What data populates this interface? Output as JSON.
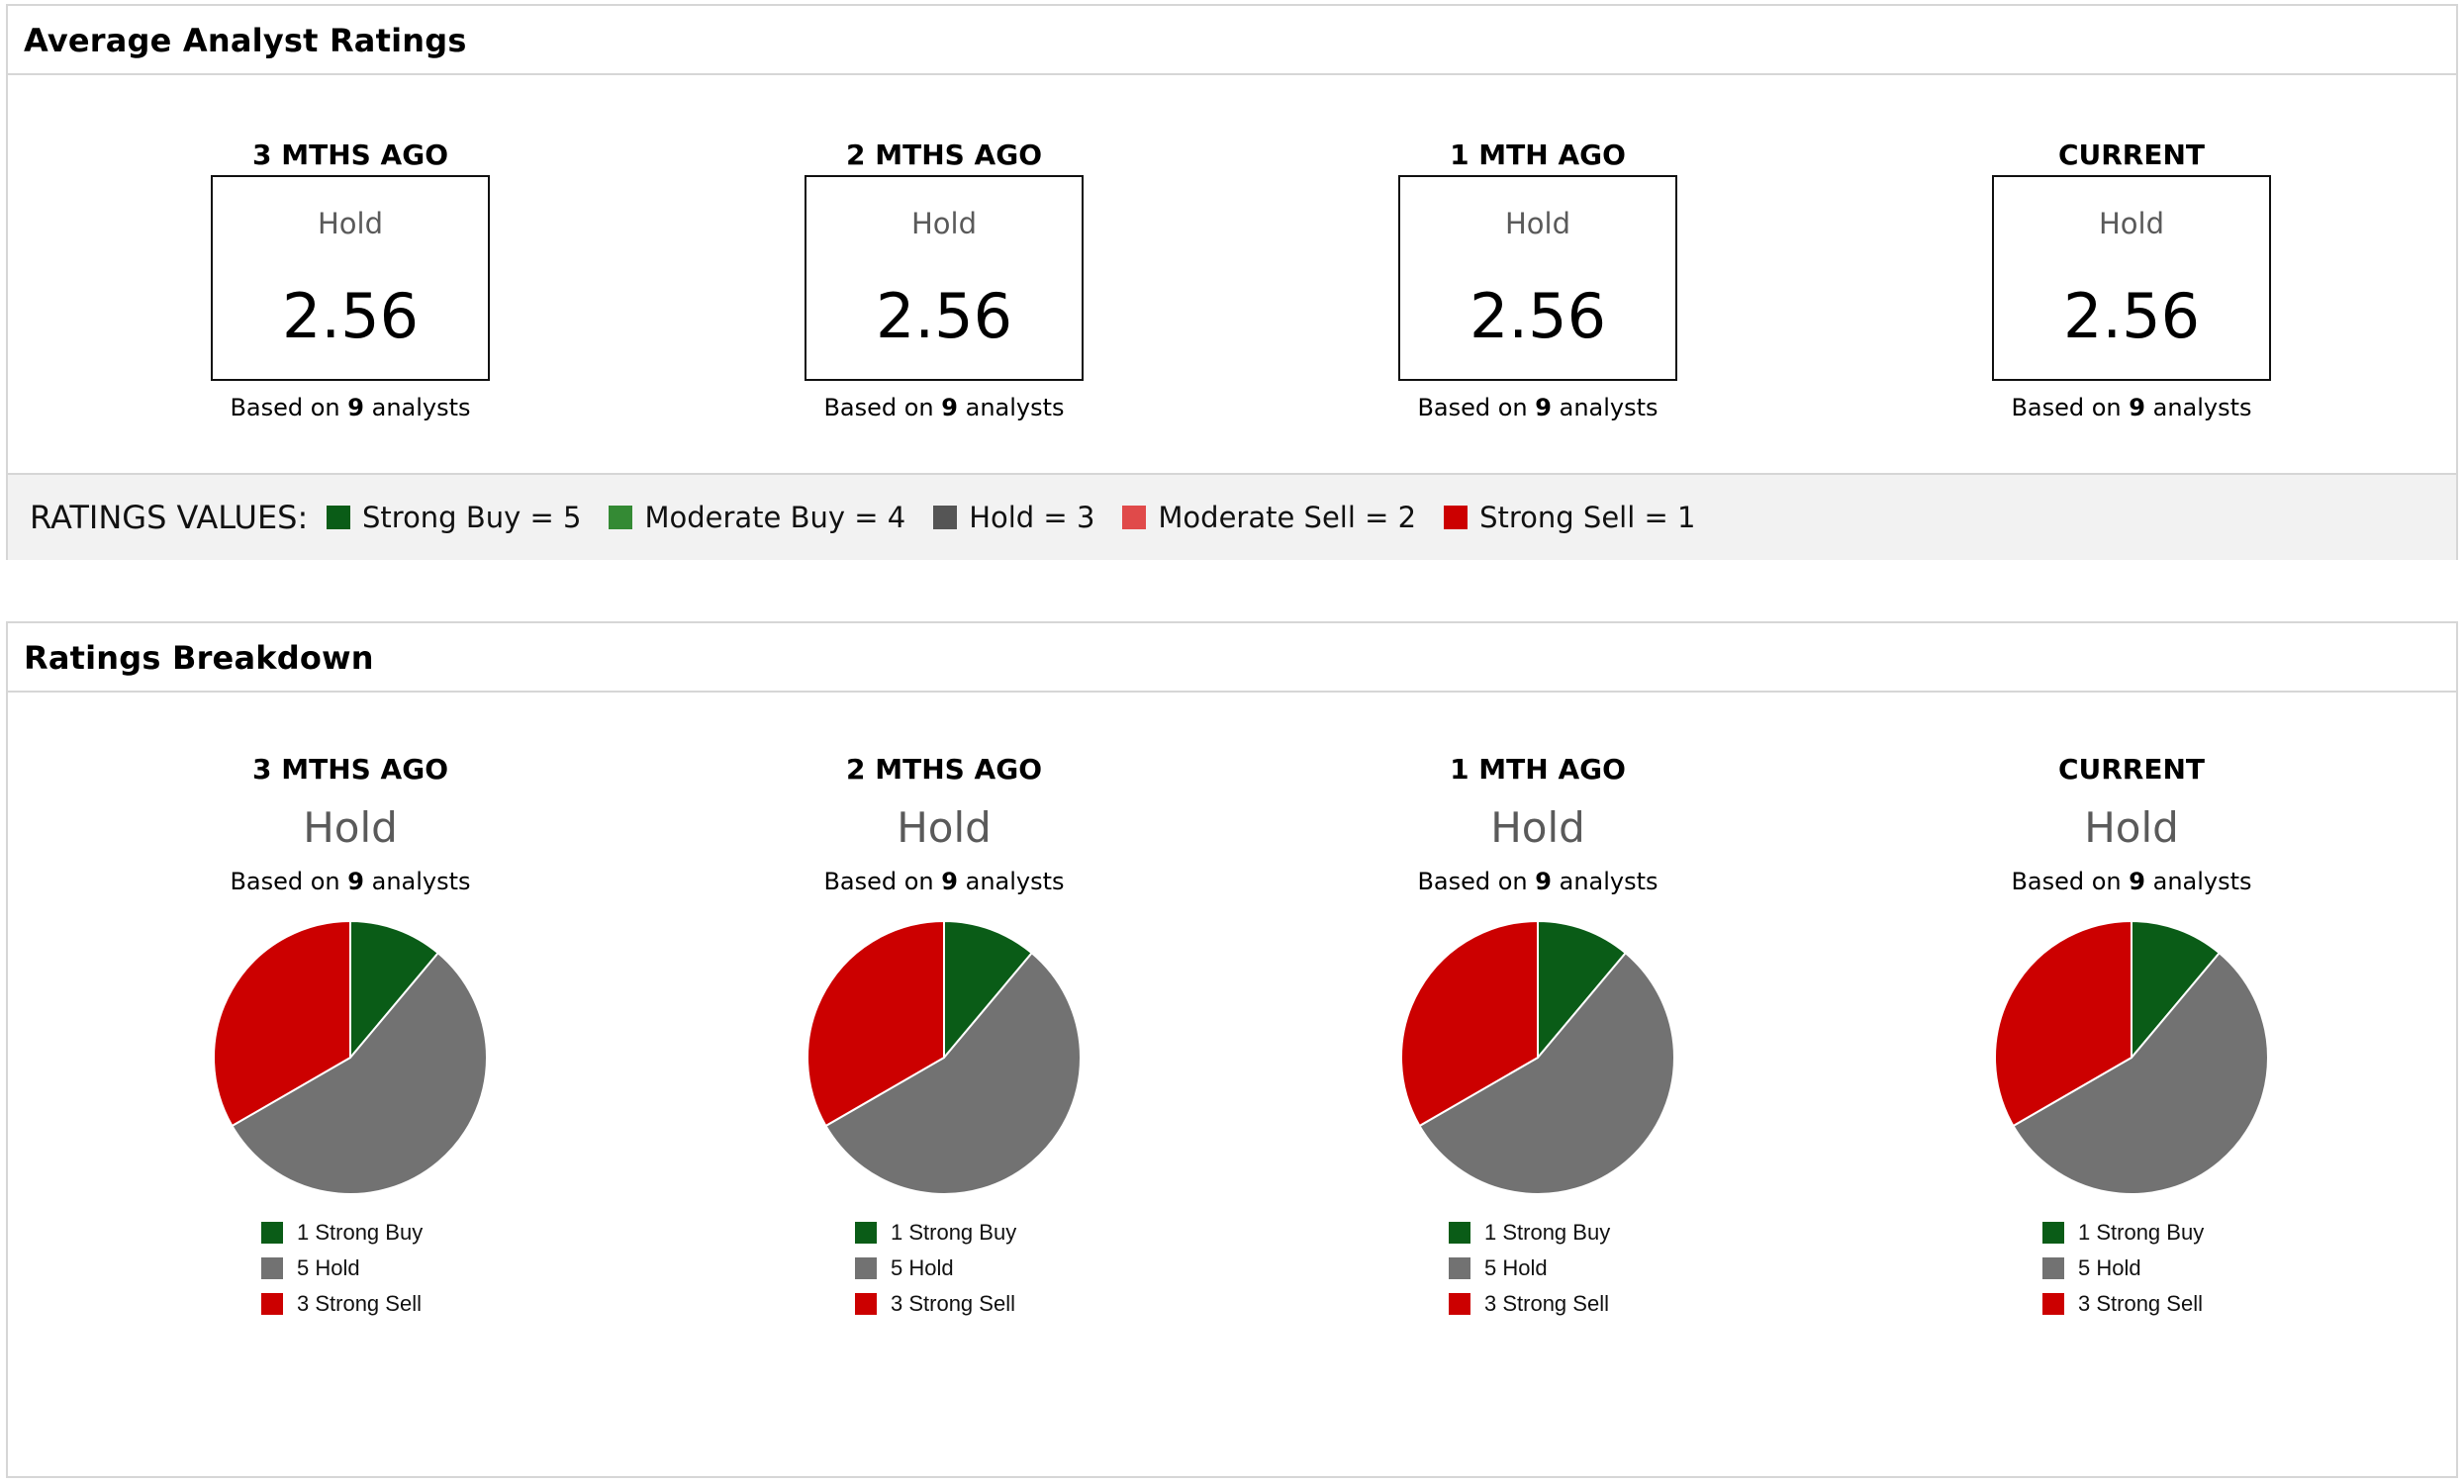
{
  "avg_panel": {
    "title": "Average Analyst Ratings",
    "columns": [
      {
        "label": "3 MTHS AGO",
        "rating": "Hold",
        "score": "2.56",
        "based_prefix": "Based on",
        "analysts": "9",
        "based_suffix": "analysts"
      },
      {
        "label": "2 MTHS AGO",
        "rating": "Hold",
        "score": "2.56",
        "based_prefix": "Based on",
        "analysts": "9",
        "based_suffix": "analysts"
      },
      {
        "label": "1 MTH AGO",
        "rating": "Hold",
        "score": "2.56",
        "based_prefix": "Based on",
        "analysts": "9",
        "based_suffix": "analysts"
      },
      {
        "label": "CURRENT",
        "rating": "Hold",
        "score": "2.56",
        "based_prefix": "Based on",
        "analysts": "9",
        "based_suffix": "analysts"
      }
    ],
    "ratings_values": {
      "title": "RATINGS VALUES:",
      "items": [
        {
          "label": "Strong Buy = 5",
          "color": "#0a5c17"
        },
        {
          "label": "Moderate Buy = 4",
          "color": "#348a34"
        },
        {
          "label": "Hold = 3",
          "color": "#555555"
        },
        {
          "label": "Moderate Sell = 2",
          "color": "#e04a4a"
        },
        {
          "label": "Strong Sell = 1",
          "color": "#cc0000"
        }
      ]
    }
  },
  "breakdown_panel": {
    "title": "Ratings Breakdown"
  },
  "chart_data": [
    {
      "type": "pie",
      "title": "3 MTHS AGO",
      "subtitle": "Hold",
      "note": {
        "prefix": "Based on",
        "analysts": "9",
        "suffix": "analysts"
      },
      "slices": [
        {
          "label": "Strong Buy",
          "value": 1,
          "color": "#0a5c17",
          "legend": "1 Strong Buy"
        },
        {
          "label": "Hold",
          "value": 5,
          "color": "#727272",
          "legend": "5 Hold"
        },
        {
          "label": "Strong Sell",
          "value": 3,
          "color": "#cc0000",
          "legend": "3 Strong Sell"
        }
      ]
    },
    {
      "type": "pie",
      "title": "2 MTHS AGO",
      "subtitle": "Hold",
      "note": {
        "prefix": "Based on",
        "analysts": "9",
        "suffix": "analysts"
      },
      "slices": [
        {
          "label": "Strong Buy",
          "value": 1,
          "color": "#0a5c17",
          "legend": "1 Strong Buy"
        },
        {
          "label": "Hold",
          "value": 5,
          "color": "#727272",
          "legend": "5 Hold"
        },
        {
          "label": "Strong Sell",
          "value": 3,
          "color": "#cc0000",
          "legend": "3 Strong Sell"
        }
      ]
    },
    {
      "type": "pie",
      "title": "1 MTH AGO",
      "subtitle": "Hold",
      "note": {
        "prefix": "Based on",
        "analysts": "9",
        "suffix": "analysts"
      },
      "slices": [
        {
          "label": "Strong Buy",
          "value": 1,
          "color": "#0a5c17",
          "legend": "1 Strong Buy"
        },
        {
          "label": "Hold",
          "value": 5,
          "color": "#727272",
          "legend": "5 Hold"
        },
        {
          "label": "Strong Sell",
          "value": 3,
          "color": "#cc0000",
          "legend": "3 Strong Sell"
        }
      ]
    },
    {
      "type": "pie",
      "title": "CURRENT",
      "subtitle": "Hold",
      "note": {
        "prefix": "Based on",
        "analysts": "9",
        "suffix": "analysts"
      },
      "slices": [
        {
          "label": "Strong Buy",
          "value": 1,
          "color": "#0a5c17",
          "legend": "1 Strong Buy"
        },
        {
          "label": "Hold",
          "value": 5,
          "color": "#727272",
          "legend": "5 Hold"
        },
        {
          "label": "Strong Sell",
          "value": 3,
          "color": "#cc0000",
          "legend": "3 Strong Sell"
        }
      ]
    }
  ]
}
